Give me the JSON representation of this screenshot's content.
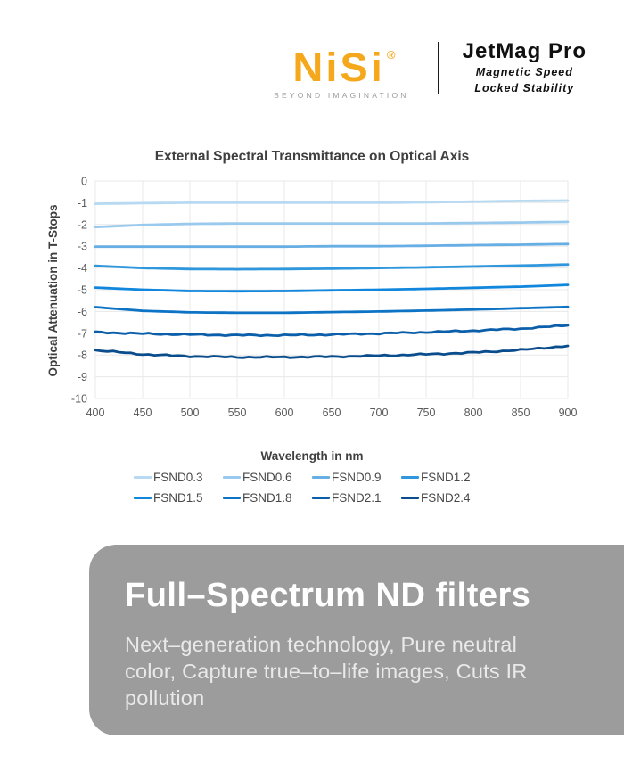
{
  "header": {
    "logo_text": "NiSi",
    "logo_registered": "®",
    "logo_tagline": "BEYOND IMAGINATION",
    "brand_color": "#f5a81c",
    "product_name": "JetMag Pro",
    "product_sub1": "Magnetic Speed",
    "product_sub2": "Locked Stability"
  },
  "chart_data": {
    "type": "line",
    "title": "External Spectral Transmittance on Optical Axis",
    "xlabel": "Wavelength in nm",
    "ylabel": "Optical Attenuation in T-Stops",
    "x": [
      400,
      450,
      500,
      550,
      600,
      650,
      700,
      750,
      800,
      850,
      900
    ],
    "xlim": [
      400,
      900
    ],
    "ylim": [
      -10,
      0
    ],
    "yticks": [
      0,
      -1,
      -2,
      -3,
      -4,
      -5,
      -6,
      -7,
      -8,
      -9,
      -10
    ],
    "xticks": [
      400,
      450,
      500,
      550,
      600,
      650,
      700,
      750,
      800,
      850,
      900
    ],
    "grid": true,
    "grid_color": "#e8e8e8",
    "tick_color": "#595959",
    "legend_position": "bottom",
    "series": [
      {
        "name": "FSND0.3",
        "color": "#b7d9f2",
        "values": [
          -1.05,
          -1.02,
          -1.0,
          -1.0,
          -1.0,
          -1.0,
          -1.0,
          -0.98,
          -0.95,
          -0.92,
          -0.9
        ]
      },
      {
        "name": "FSND0.6",
        "color": "#9ac9ee",
        "values": [
          -2.12,
          -2.02,
          -1.97,
          -1.95,
          -1.95,
          -1.95,
          -1.95,
          -1.95,
          -1.93,
          -1.91,
          -1.88
        ]
      },
      {
        "name": "FSND0.9",
        "color": "#66aee4",
        "values": [
          -3.02,
          -3.02,
          -3.02,
          -3.02,
          -3.02,
          -3.0,
          -3.0,
          -2.98,
          -2.95,
          -2.93,
          -2.9
        ]
      },
      {
        "name": "FSND1.2",
        "color": "#2f97de",
        "values": [
          -3.9,
          -4.0,
          -4.05,
          -4.06,
          -4.05,
          -4.03,
          -4.0,
          -3.97,
          -3.93,
          -3.89,
          -3.84
        ]
      },
      {
        "name": "FSND1.5",
        "color": "#1087dc",
        "values": [
          -4.9,
          -5.0,
          -5.06,
          -5.07,
          -5.06,
          -5.03,
          -5.0,
          -4.96,
          -4.91,
          -4.86,
          -4.78
        ]
      },
      {
        "name": "FSND1.8",
        "color": "#0d73c5",
        "values": [
          -5.8,
          -5.97,
          -6.04,
          -6.06,
          -6.06,
          -6.03,
          -6.0,
          -5.96,
          -5.91,
          -5.85,
          -5.79
        ]
      },
      {
        "name": "FSND2.1",
        "color": "#0b5ea9",
        "values": [
          -6.95,
          -7.02,
          -7.06,
          -7.09,
          -7.09,
          -7.06,
          -7.01,
          -6.95,
          -6.88,
          -6.79,
          -6.64
        ]
      },
      {
        "name": "FSND2.4",
        "color": "#094d8c",
        "values": [
          -7.78,
          -7.97,
          -8.06,
          -8.1,
          -8.1,
          -8.08,
          -8.03,
          -7.97,
          -7.89,
          -7.77,
          -7.58
        ]
      }
    ]
  },
  "banner": {
    "title": "Full–Spectrum ND filters",
    "description": "Next–generation technology, Pure neutral color, Capture true–to–life images, Cuts IR pollution",
    "bg_color": "#9c9c9c"
  }
}
